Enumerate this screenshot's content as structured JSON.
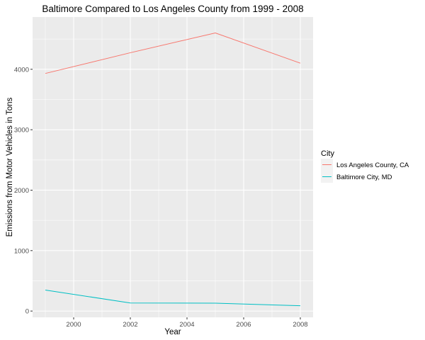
{
  "chart_data": {
    "type": "line",
    "title": "Baltimore Compared to Los Angeles County from 1999 - 2008",
    "xlabel": "Year",
    "ylabel": "Emissions from Motor Vehicles in Tons",
    "x": [
      1999,
      2002,
      2005,
      2008
    ],
    "xlim": [
      1998.55,
      2008.45
    ],
    "ylim": [
      -104,
      4865
    ],
    "xticks": [
      2000,
      2002,
      2004,
      2006,
      2008
    ],
    "yticks": [
      0,
      1000,
      2000,
      3000,
      4000
    ],
    "grid": true,
    "legend": {
      "title": "City",
      "position": "right"
    },
    "series": [
      {
        "name": "Los Angeles County, CA",
        "color": "#F8766D",
        "values": [
          3931,
          4274,
          4601,
          4101
        ]
      },
      {
        "name": "Baltimore City, MD",
        "color": "#00BFC4",
        "values": [
          347,
          134,
          130,
          88
        ]
      }
    ]
  }
}
